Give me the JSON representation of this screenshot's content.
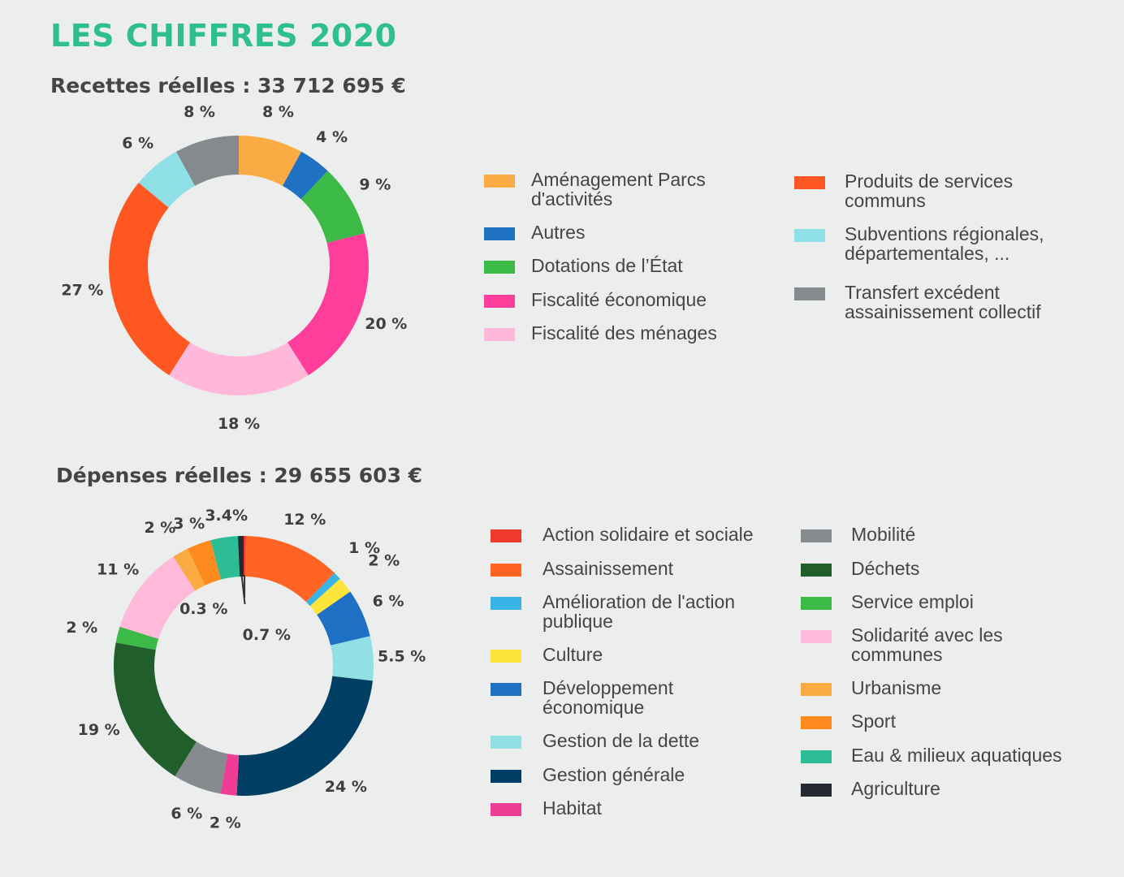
{
  "page": {
    "title": "LES CHIFFRES 2020",
    "recettes_title": "Recettes réelles : 33 712 695 €",
    "depenses_title": "Dépenses réelles : 29 655 603 €"
  },
  "chart_data": [
    {
      "type": "pie",
      "donut": true,
      "title": "Recettes réelles : 33 712 695 €",
      "categories": [
        "Aménagement Parcs d'activités",
        "Autres",
        "Dotations de l’État",
        "Fiscalité économique",
        "Fiscalité des ménages",
        "Produits de services communs",
        "Subventions régionales, départementales, ...",
        "Transfert excédent assainissement collectif"
      ],
      "values": [
        8,
        4,
        9,
        20,
        18,
        27,
        6,
        8
      ],
      "value_labels": [
        "8 %",
        "4 %",
        "9 %",
        "20 %",
        "18 %",
        "27 %",
        "6 %",
        "8 %"
      ],
      "colors": [
        "#fbab43",
        "#1f71c2",
        "#3cba48",
        "#ff3d9a",
        "#ffb8da",
        "#ff5722",
        "#8ee0e6",
        "#858a8e"
      ],
      "legend_placement": "right, two columns"
    },
    {
      "type": "pie",
      "donut": true,
      "title": "Dépenses réelles : 29 655 603 €",
      "categories": [
        "Action solidaire et sociale",
        "Assainissement",
        "Amélioration de l'action publique",
        "Culture",
        "Développement économique",
        "Gestion de la dette",
        "Gestion générale",
        "Habitat",
        "Mobilité",
        "Déchets",
        "Service emploi",
        "Solidarité avec les communes",
        "Urbanisme",
        "Sport",
        "Eau & milieux aquatiques",
        "Agriculture"
      ],
      "values": [
        0.3,
        12,
        1,
        2,
        6,
        5.5,
        24,
        2,
        6,
        19,
        2,
        11,
        2,
        3,
        3.4,
        0.7
      ],
      "value_labels": [
        "0.3 %",
        "12 %",
        "1 %",
        "2 %",
        "6 %",
        "5.5 %",
        "24 %",
        "2 %",
        "6 %",
        "19 %",
        "2 %",
        "11 %",
        "2 %",
        "3 %",
        "3.4%",
        "0.7 %"
      ],
      "colors": [
        "#f03a2e",
        "#ff6424",
        "#3ab3e6",
        "#fde43b",
        "#1e70c4",
        "#91e0e4",
        "#003e63",
        "#ef3d96",
        "#878b8f",
        "#205e2c",
        "#3cba48",
        "#ffb9d9",
        "#fbab43",
        "#ff8a1e",
        "#2dbd94",
        "#262a30"
      ],
      "legend_placement": "right, two columns"
    }
  ]
}
